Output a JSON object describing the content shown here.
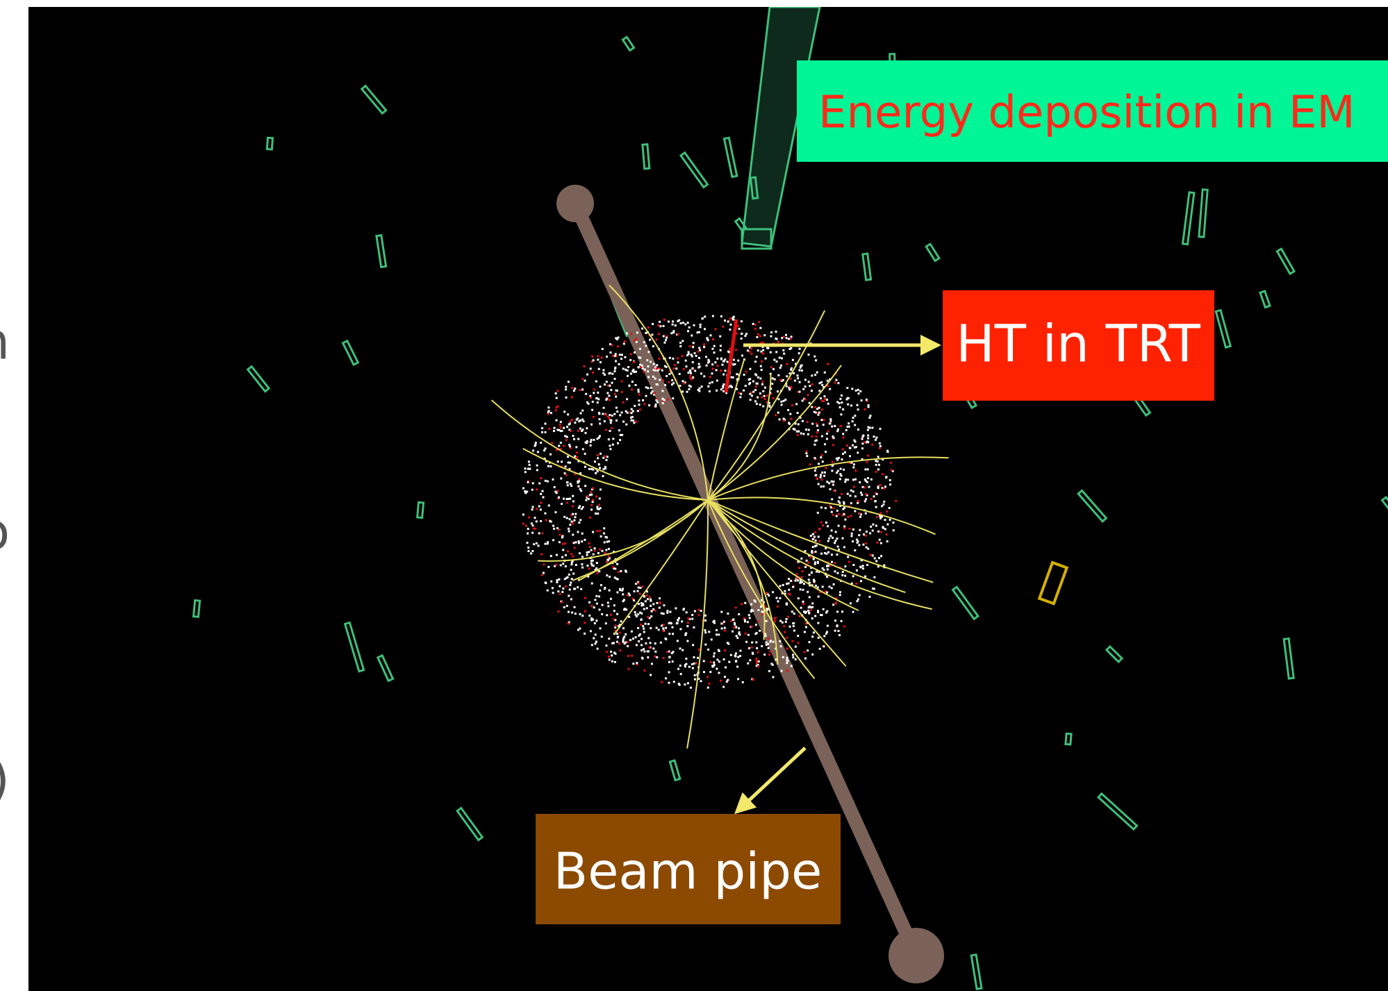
{
  "left_fragments": [
    "n",
    "o",
    ")"
  ],
  "labels": {
    "em": "Energy deposition in EM",
    "trt": "HT in TRT",
    "beam": "Beam pipe"
  }
}
